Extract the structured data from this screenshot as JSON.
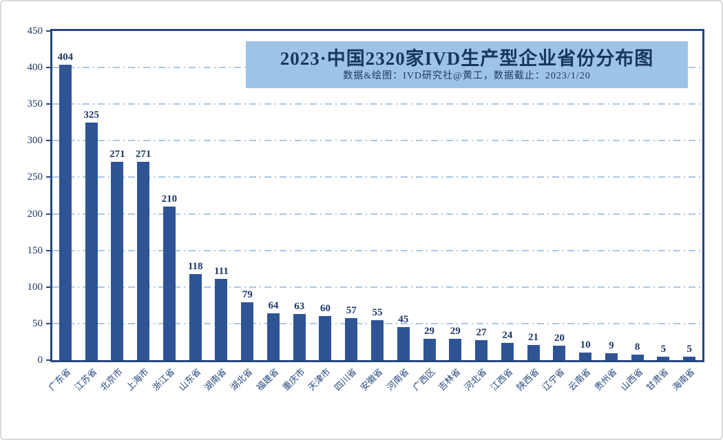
{
  "chart_data": {
    "type": "bar",
    "title": "2023·中国2320家IVD生产型企业省份分布图",
    "subtitle": "数据&绘图：IVD研究社@黄工，数据截止：2023/1/20",
    "categories": [
      "广东省",
      "江苏省",
      "北京市",
      "上海市",
      "浙江省",
      "山东省",
      "湖南省",
      "湖北省",
      "福建省",
      "重庆市",
      "天津市",
      "四川省",
      "安徽省",
      "河南省",
      "广西区",
      "吉林省",
      "河北省",
      "江西省",
      "陕西省",
      "辽宁省",
      "云南省",
      "贵州省",
      "山西省",
      "甘肃省",
      "海南省"
    ],
    "values": [
      404,
      325,
      271,
      271,
      210,
      118,
      111,
      79,
      64,
      63,
      60,
      57,
      55,
      45,
      29,
      29,
      27,
      24,
      21,
      20,
      10,
      9,
      8,
      5,
      5
    ],
    "total_companies": 2320,
    "xlabel": "",
    "ylabel": "",
    "ylim": [
      0,
      450
    ],
    "ytick_interval": 50,
    "yticks": [
      0,
      50,
      100,
      150,
      200,
      250,
      300,
      350,
      400,
      450
    ],
    "grid": "horizontal-dash-dot",
    "legend": "none",
    "data_labels": "above-bars",
    "colors": {
      "bar": "#2f5496",
      "axis_text": "#1f3864",
      "gridline": "#a9c7e7",
      "plot_border": "#24457e",
      "title_text": "#17355e",
      "title_background": "#9dc3e6"
    }
  }
}
